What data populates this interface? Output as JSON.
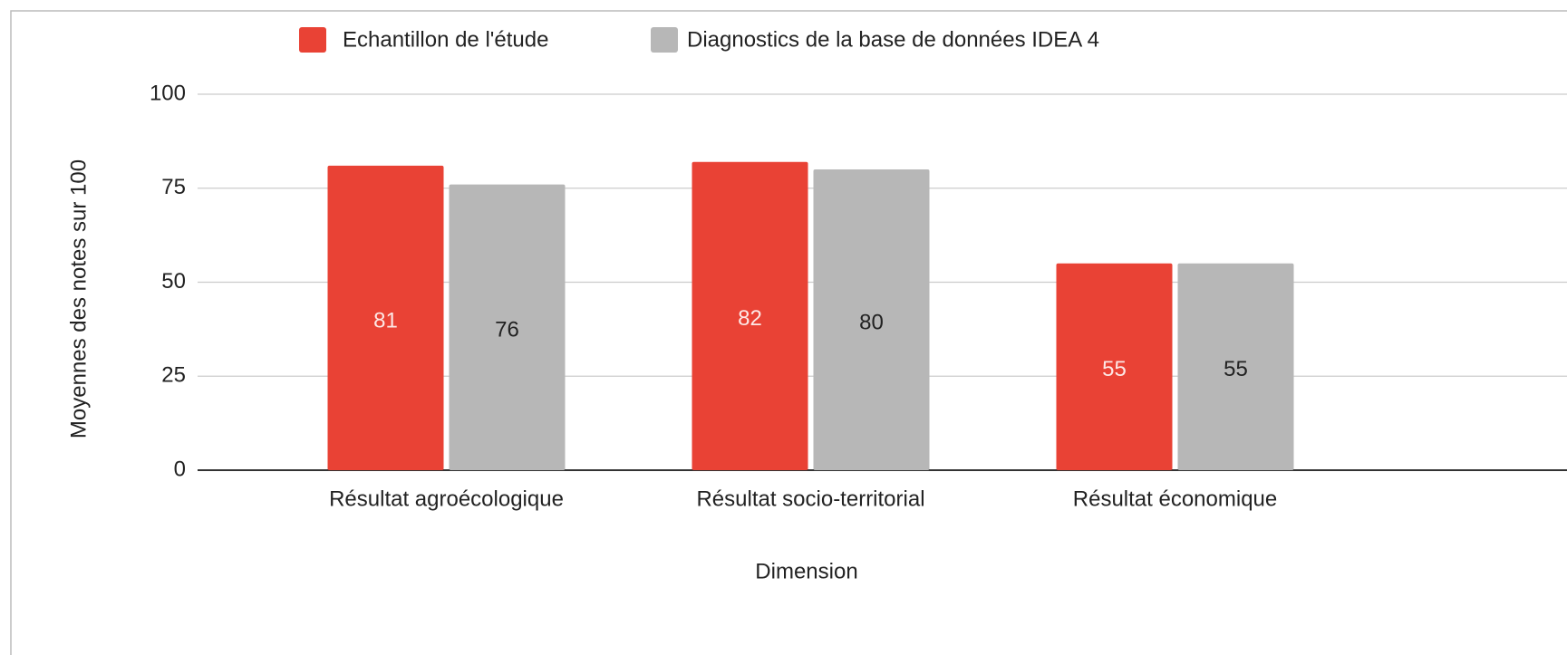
{
  "chart_data": {
    "type": "bar",
    "categories": [
      "Résultat agroécologique",
      "Résultat socio-territorial",
      "Résultat économique"
    ],
    "series": [
      {
        "name": "Echantillon de l'étude",
        "color": "#e94235",
        "values": [
          81,
          82,
          55
        ]
      },
      {
        "name": "Diagnostics de la base de données IDEA 4",
        "color": "#b7b7b7",
        "values": [
          76,
          80,
          55
        ]
      }
    ],
    "xlabel": "Dimension",
    "ylabel": "Moyennes des notes sur 100",
    "ylim": [
      0,
      100
    ],
    "yticks": [
      0,
      25,
      50,
      75,
      100
    ],
    "grid": true,
    "legend": "top"
  }
}
